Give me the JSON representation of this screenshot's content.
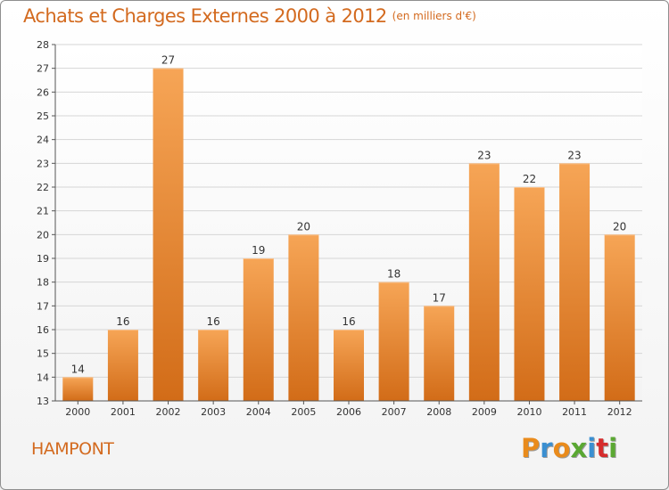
{
  "header": {
    "title": "Achats et Charges Externes 2000 à 2012",
    "unit": "(en milliers d'€)"
  },
  "footer": {
    "place": "HAMPONT",
    "brand": "Proxiti",
    "brand_colors": [
      "#e98b1c",
      "#3a8fd1",
      "#e98b1c",
      "#5aa832",
      "#3a8fd1",
      "#d62c2c",
      "#5aa832"
    ]
  },
  "colors": {
    "bar_top": "#f6a556",
    "bar_bottom": "#d26c18",
    "title": "#d36a1f",
    "grid": "#d6d6d6",
    "axis": "#555555"
  },
  "chart_data": {
    "type": "bar",
    "categories": [
      "2000",
      "2001",
      "2002",
      "2003",
      "2004",
      "2005",
      "2006",
      "2007",
      "2008",
      "2009",
      "2010",
      "2011",
      "2012"
    ],
    "values": [
      14,
      16,
      27,
      16,
      19,
      20,
      16,
      18,
      17,
      23,
      22,
      23,
      20
    ],
    "ylim": [
      13,
      28
    ],
    "yticks": [
      13,
      14,
      15,
      16,
      17,
      18,
      19,
      20,
      21,
      22,
      23,
      24,
      25,
      26,
      27,
      28
    ],
    "grid": true,
    "data_labels": true
  }
}
